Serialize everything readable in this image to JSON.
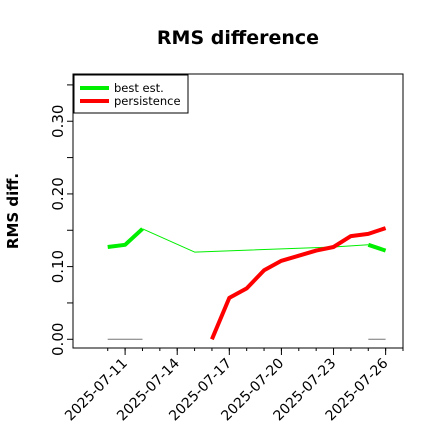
{
  "chart_data": {
    "type": "line",
    "title": "RMS difference",
    "xlabel": "",
    "ylabel": "RMS diff.",
    "x_ticks": [
      "2025-07-11",
      "2025-07-14",
      "2025-07-17",
      "2025-07-20",
      "2025-07-23",
      "2025-07-26"
    ],
    "y_ticks": [
      "0.00",
      "0.10",
      "0.20",
      "0.30"
    ],
    "xlim": [
      "2025-07-08",
      "2025-07-27"
    ],
    "ylim": [
      -0.012,
      0.365
    ],
    "legend_position": "top-left",
    "grid": false,
    "series": [
      {
        "name": "best est.",
        "color": "#00ee00",
        "segments": [
          {
            "width": "thick",
            "points": [
              [
                "2025-07-10",
                0.127
              ],
              [
                "2025-07-11",
                0.13
              ],
              [
                "2025-07-12",
                0.152
              ]
            ]
          },
          {
            "width": "thin",
            "points": [
              [
                "2025-07-12",
                0.152
              ],
              [
                "2025-07-15",
                0.12
              ],
              [
                "2025-07-23",
                0.127
              ],
              [
                "2025-07-25",
                0.13
              ]
            ]
          },
          {
            "width": "thick",
            "points": [
              [
                "2025-07-25",
                0.13
              ],
              [
                "2025-07-26",
                0.122
              ]
            ]
          }
        ]
      },
      {
        "name": "persistence",
        "color": "#ff0000",
        "segments": [
          {
            "width": "thick",
            "points": [
              [
                "2025-07-16",
                0.0
              ],
              [
                "2025-07-17",
                0.057
              ],
              [
                "2025-07-18",
                0.07
              ],
              [
                "2025-07-19",
                0.095
              ],
              [
                "2025-07-20",
                0.108
              ],
              [
                "2025-07-21",
                0.115
              ],
              [
                "2025-07-22",
                0.122
              ],
              [
                "2025-07-23",
                0.127
              ],
              [
                "2025-07-24",
                0.142
              ],
              [
                "2025-07-25",
                0.145
              ],
              [
                "2025-07-26",
                0.153
              ]
            ]
          }
        ]
      },
      {
        "name": "",
        "color": "#777777",
        "segments": [
          {
            "width": "thin",
            "points": [
              [
                "2025-07-10",
                0.0
              ],
              [
                "2025-07-12",
                0.0
              ]
            ]
          },
          {
            "width": "thin",
            "points": [
              [
                "2025-07-25",
                0.0
              ],
              [
                "2025-07-26",
                0.0
              ]
            ]
          }
        ]
      }
    ]
  }
}
